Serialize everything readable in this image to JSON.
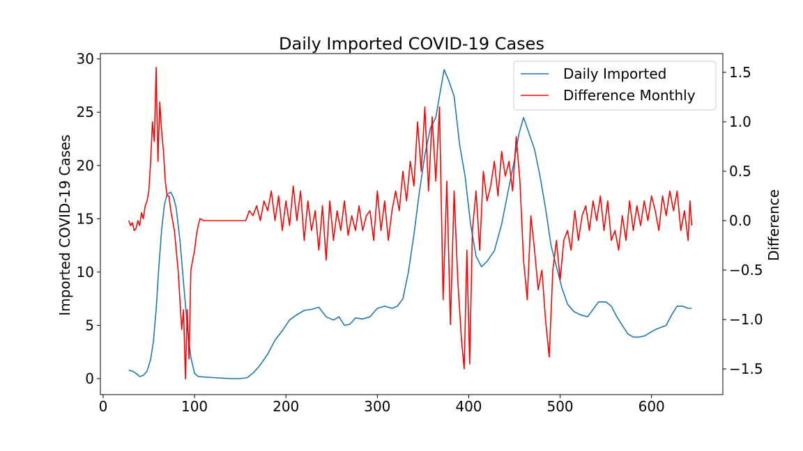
{
  "chart_data": {
    "type": "line",
    "title": "Daily Imported COVID-19 Cases",
    "xlabel": "",
    "ylabel": "Imported COVID-19 Cases",
    "y2label": "Difference",
    "xlim": [
      -3,
      678
    ],
    "ylim": [
      -1.5,
      30.5
    ],
    "y2lim": [
      -1.76,
      1.69
    ],
    "x_ticks": [
      0,
      100,
      200,
      300,
      400,
      500,
      600
    ],
    "y_ticks": [
      0,
      5,
      10,
      15,
      20,
      25,
      30
    ],
    "y2_ticks": [
      -1.5,
      -1.0,
      -0.5,
      0.0,
      0.5,
      1.0,
      1.5
    ],
    "y2_tick_labels": [
      "−1.5",
      "−1.0",
      "−0.5",
      "0.0",
      "0.5",
      "1.0",
      "1.5"
    ],
    "grid": false,
    "legend_position": "top-right",
    "series": [
      {
        "name": "Daily Imported",
        "axis": "left",
        "color": "#1f77b4",
        "points": [
          [
            28,
            0.8
          ],
          [
            32,
            0.7
          ],
          [
            36,
            0.5
          ],
          [
            40,
            0.2
          ],
          [
            44,
            0.3
          ],
          [
            48,
            0.7
          ],
          [
            52,
            1.8
          ],
          [
            55,
            3.5
          ],
          [
            58,
            6.5
          ],
          [
            61,
            10.5
          ],
          [
            64,
            14.0
          ],
          [
            67,
            16.3
          ],
          [
            70,
            17.3
          ],
          [
            74,
            17.5
          ],
          [
            77,
            17.0
          ],
          [
            80,
            16.0
          ],
          [
            84,
            13.0
          ],
          [
            88,
            9.0
          ],
          [
            92,
            5.0
          ],
          [
            96,
            2.0
          ],
          [
            100,
            0.5
          ],
          [
            104,
            0.2
          ],
          [
            110,
            0.15
          ],
          [
            120,
            0.1
          ],
          [
            130,
            0.05
          ],
          [
            140,
            0.0
          ],
          [
            150,
            0.0
          ],
          [
            158,
            0.1
          ],
          [
            165,
            0.6
          ],
          [
            172,
            1.3
          ],
          [
            180,
            2.3
          ],
          [
            188,
            3.6
          ],
          [
            196,
            4.5
          ],
          [
            204,
            5.5
          ],
          [
            212,
            6.0
          ],
          [
            220,
            6.4
          ],
          [
            228,
            6.5
          ],
          [
            236,
            6.7
          ],
          [
            244,
            5.8
          ],
          [
            252,
            5.5
          ],
          [
            258,
            5.8
          ],
          [
            264,
            5.0
          ],
          [
            270,
            5.1
          ],
          [
            276,
            5.7
          ],
          [
            284,
            5.6
          ],
          [
            292,
            5.8
          ],
          [
            300,
            6.6
          ],
          [
            308,
            6.8
          ],
          [
            316,
            6.6
          ],
          [
            322,
            6.8
          ],
          [
            328,
            7.5
          ],
          [
            334,
            10.0
          ],
          [
            340,
            13.5
          ],
          [
            346,
            17.5
          ],
          [
            352,
            21.0
          ],
          [
            358,
            23.5
          ],
          [
            364,
            24.5
          ],
          [
            369,
            27.0
          ],
          [
            373,
            29.0
          ],
          [
            378,
            28.0
          ],
          [
            384,
            26.5
          ],
          [
            390,
            22.0
          ],
          [
            396,
            19.0
          ],
          [
            402,
            14.5
          ],
          [
            408,
            11.5
          ],
          [
            414,
            10.5
          ],
          [
            420,
            11.0
          ],
          [
            428,
            12.0
          ],
          [
            436,
            14.5
          ],
          [
            444,
            18.0
          ],
          [
            450,
            20.5
          ],
          [
            455,
            23.0
          ],
          [
            460,
            24.5
          ],
          [
            466,
            23.0
          ],
          [
            472,
            21.5
          ],
          [
            478,
            19.0
          ],
          [
            484,
            16.0
          ],
          [
            490,
            12.5
          ],
          [
            496,
            10.5
          ],
          [
            502,
            8.5
          ],
          [
            508,
            7.0
          ],
          [
            515,
            6.3
          ],
          [
            522,
            6.0
          ],
          [
            530,
            5.8
          ],
          [
            536,
            6.5
          ],
          [
            542,
            7.2
          ],
          [
            550,
            7.2
          ],
          [
            556,
            6.8
          ],
          [
            562,
            5.8
          ],
          [
            568,
            5.0
          ],
          [
            574,
            4.2
          ],
          [
            580,
            3.9
          ],
          [
            586,
            3.9
          ],
          [
            592,
            4.0
          ],
          [
            598,
            4.3
          ],
          [
            604,
            4.6
          ],
          [
            610,
            4.8
          ],
          [
            616,
            5.0
          ],
          [
            622,
            6.0
          ],
          [
            628,
            6.8
          ],
          [
            634,
            6.8
          ],
          [
            640,
            6.6
          ],
          [
            644,
            6.6
          ]
        ]
      },
      {
        "name": "Difference Monthly",
        "axis": "right",
        "color": "#ff0000",
        "points": [
          [
            28,
            0.0
          ],
          [
            30,
            -0.05
          ],
          [
            32,
            -0.02
          ],
          [
            34,
            -0.1
          ],
          [
            36,
            -0.08
          ],
          [
            38,
            0.0
          ],
          [
            40,
            -0.05
          ],
          [
            42,
            0.08
          ],
          [
            44,
            0.02
          ],
          [
            46,
            0.15
          ],
          [
            48,
            0.2
          ],
          [
            50,
            0.3
          ],
          [
            52,
            0.6
          ],
          [
            54,
            1.0
          ],
          [
            56,
            0.8
          ],
          [
            58,
            1.55
          ],
          [
            60,
            0.6
          ],
          [
            62,
            1.2
          ],
          [
            64,
            0.9
          ],
          [
            66,
            0.7
          ],
          [
            68,
            0.4
          ],
          [
            70,
            0.25
          ],
          [
            72,
            0.25
          ],
          [
            74,
            0.1
          ],
          [
            76,
            0.0
          ],
          [
            78,
            -0.1
          ],
          [
            80,
            -0.3
          ],
          [
            82,
            -0.5
          ],
          [
            84,
            -0.8
          ],
          [
            86,
            -1.1
          ],
          [
            88,
            -0.9
          ],
          [
            90,
            -1.6
          ],
          [
            92,
            -0.9
          ],
          [
            94,
            -1.4
          ],
          [
            96,
            -0.5
          ],
          [
            98,
            -0.4
          ],
          [
            100,
            -0.3
          ],
          [
            102,
            -0.15
          ],
          [
            104,
            -0.05
          ],
          [
            106,
            0.02
          ],
          [
            110,
            0.0
          ],
          [
            120,
            0.0
          ],
          [
            130,
            0.0
          ],
          [
            140,
            0.0
          ],
          [
            150,
            0.0
          ],
          [
            156,
            0.0
          ],
          [
            160,
            0.1
          ],
          [
            164,
            0.05
          ],
          [
            168,
            0.15
          ],
          [
            172,
            0.0
          ],
          [
            176,
            0.2
          ],
          [
            180,
            0.1
          ],
          [
            184,
            0.3
          ],
          [
            188,
            0.0
          ],
          [
            192,
            0.25
          ],
          [
            196,
            -0.1
          ],
          [
            200,
            0.2
          ],
          [
            204,
            -0.05
          ],
          [
            208,
            0.35
          ],
          [
            212,
            0.0
          ],
          [
            216,
            0.3
          ],
          [
            220,
            -0.2
          ],
          [
            224,
            0.2
          ],
          [
            228,
            -0.1
          ],
          [
            232,
            0.1
          ],
          [
            236,
            -0.3
          ],
          [
            240,
            0.15
          ],
          [
            244,
            -0.4
          ],
          [
            248,
            0.2
          ],
          [
            252,
            -0.2
          ],
          [
            256,
            0.1
          ],
          [
            260,
            -0.1
          ],
          [
            264,
            0.2
          ],
          [
            268,
            -0.15
          ],
          [
            272,
            0.05
          ],
          [
            276,
            -0.1
          ],
          [
            280,
            0.15
          ],
          [
            284,
            -0.1
          ],
          [
            288,
            0.05
          ],
          [
            292,
            0.1
          ],
          [
            296,
            -0.2
          ],
          [
            300,
            0.3
          ],
          [
            304,
            -0.1
          ],
          [
            308,
            0.2
          ],
          [
            312,
            -0.2
          ],
          [
            316,
            0.1
          ],
          [
            320,
            0.3
          ],
          [
            324,
            0.1
          ],
          [
            328,
            0.5
          ],
          [
            332,
            0.2
          ],
          [
            336,
            0.6
          ],
          [
            340,
            0.35
          ],
          [
            344,
            1.0
          ],
          [
            348,
            0.5
          ],
          [
            352,
            1.15
          ],
          [
            356,
            0.3
          ],
          [
            360,
            1.05
          ],
          [
            364,
            0.4
          ],
          [
            368,
            1.15
          ],
          [
            372,
            -0.8
          ],
          [
            376,
            0.4
          ],
          [
            380,
            -1.05
          ],
          [
            384,
            0.3
          ],
          [
            388,
            -0.6
          ],
          [
            392,
            -1.2
          ],
          [
            395,
            -1.5
          ],
          [
            398,
            -0.3
          ],
          [
            401,
            -1.45
          ],
          [
            404,
            -0.1
          ],
          [
            408,
            0.3
          ],
          [
            412,
            -0.3
          ],
          [
            416,
            0.5
          ],
          [
            420,
            0.2
          ],
          [
            424,
            0.35
          ],
          [
            428,
            0.6
          ],
          [
            432,
            0.25
          ],
          [
            436,
            0.7
          ],
          [
            440,
            0.45
          ],
          [
            444,
            0.6
          ],
          [
            448,
            0.3
          ],
          [
            452,
            0.85
          ],
          [
            456,
            0.4
          ],
          [
            460,
            -0.4
          ],
          [
            464,
            -0.8
          ],
          [
            468,
            0.05
          ],
          [
            472,
            -0.3
          ],
          [
            476,
            -0.7
          ],
          [
            480,
            -0.5
          ],
          [
            484,
            -1.0
          ],
          [
            488,
            -1.38
          ],
          [
            492,
            -0.5
          ],
          [
            496,
            -0.2
          ],
          [
            500,
            -0.6
          ],
          [
            504,
            -0.2
          ],
          [
            508,
            -0.1
          ],
          [
            512,
            -0.3
          ],
          [
            516,
            0.1
          ],
          [
            520,
            -0.2
          ],
          [
            524,
            0.05
          ],
          [
            528,
            0.15
          ],
          [
            532,
            -0.1
          ],
          [
            536,
            0.2
          ],
          [
            540,
            0.0
          ],
          [
            544,
            0.25
          ],
          [
            548,
            -0.1
          ],
          [
            552,
            0.2
          ],
          [
            556,
            -0.2
          ],
          [
            560,
            -0.1
          ],
          [
            564,
            -0.3
          ],
          [
            568,
            0.05
          ],
          [
            572,
            -0.2
          ],
          [
            576,
            0.2
          ],
          [
            580,
            -0.1
          ],
          [
            584,
            0.15
          ],
          [
            588,
            -0.05
          ],
          [
            592,
            0.2
          ],
          [
            596,
            0.0
          ],
          [
            600,
            0.25
          ],
          [
            604,
            0.1
          ],
          [
            608,
            -0.1
          ],
          [
            612,
            0.25
          ],
          [
            616,
            0.05
          ],
          [
            620,
            0.3
          ],
          [
            624,
            0.1
          ],
          [
            628,
            0.3
          ],
          [
            632,
            -0.1
          ],
          [
            636,
            0.1
          ],
          [
            640,
            -0.2
          ],
          [
            642,
            0.2
          ],
          [
            644,
            -0.05
          ]
        ]
      }
    ]
  }
}
